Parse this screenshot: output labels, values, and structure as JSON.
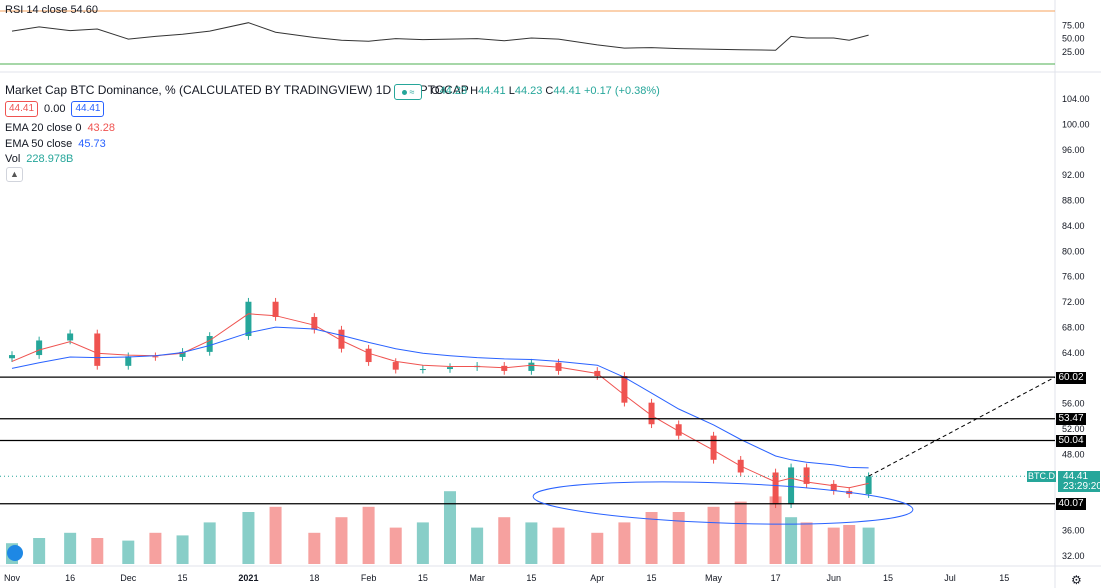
{
  "legend": {
    "title": "Market Cap BTC Dominance, % (CALCULATED BY TRADINGVIEW)",
    "interval": "1D",
    "exchange": "CRYPTOCAP",
    "o_label": "O",
    "o": "44.23",
    "h_label": "H",
    "h": "44.41",
    "l_label": "L",
    "l": "44.23",
    "c_label": "C",
    "c": "44.41",
    "change": "+0.17 (+0.38%)",
    "price_box_1": "44.41",
    "price_box_2": "0.00",
    "price_box_3": "44.41",
    "ema20_label": "EMA 20 close 0",
    "ema20_value": "43.28",
    "ema50_label": "EMA 50 close",
    "ema50_value": "45.73",
    "vol_label": "Vol",
    "vol_value": "228.978B",
    "collapse_icon": "chevron-up-icon",
    "flag_icon": "approx-icon"
  },
  "rsi": {
    "label": "RSI 14 close",
    "value": "54.60",
    "levels": [
      "75.00",
      "50.00",
      "25.00"
    ]
  },
  "price_labels": {
    "current_symbol": "BTC.D",
    "current_price": "44.41",
    "countdown": "23:29:20",
    "horizontal_levels": [
      "60.02",
      "53.47",
      "50.04",
      "40.07"
    ]
  },
  "colors": {
    "up": "#26a69a",
    "down": "#ef5350",
    "ema20": "#ef5350",
    "ema50": "#2962ff",
    "rsi_upper": "#f7a35c",
    "rsi_lower": "#4caf50",
    "level": "#000000"
  },
  "chart_data": [
    {
      "type": "line",
      "title": "RSI 14 close",
      "ylim": [
        0,
        100
      ],
      "ticks": [
        "75.00",
        "50.00",
        "25.00"
      ],
      "bands": [
        70,
        30
      ],
      "x": [
        "2020-11-01",
        "2020-11-08",
        "2020-11-16",
        "2020-11-23",
        "2020-12-01",
        "2020-12-08",
        "2020-12-15",
        "2020-12-22",
        "2021-01-01",
        "2021-01-08",
        "2021-01-18",
        "2021-01-25",
        "2021-02-01",
        "2021-02-08",
        "2021-02-15",
        "2021-02-22",
        "2021-03-01",
        "2021-03-08",
        "2021-03-15",
        "2021-03-22",
        "2021-04-01",
        "2021-04-08",
        "2021-04-15",
        "2021-04-22",
        "2021-05-01",
        "2021-05-08",
        "2021-05-17",
        "2021-05-21",
        "2021-05-25",
        "2021-06-01",
        "2021-06-05",
        "2021-06-10"
      ],
      "values": [
        62,
        70,
        63,
        66,
        47,
        52,
        56,
        62,
        78,
        60,
        50,
        45,
        43,
        48,
        46,
        47,
        48,
        44,
        49,
        47,
        36,
        30,
        31,
        29,
        28,
        27,
        26,
        52,
        49,
        49,
        45,
        54.6
      ]
    },
    {
      "type": "candlestick",
      "title": "Market Cap BTC Dominance, % (CALCULATED BY TRADINGVIEW)",
      "ylim": [
        30,
        106
      ],
      "y_ticks": [
        "104.00",
        "100.00",
        "96.00",
        "92.00",
        "88.00",
        "84.00",
        "80.00",
        "76.00",
        "72.00",
        "68.00",
        "64.00",
        "60.00",
        "56.00",
        "52.00",
        "48.00",
        "44.00",
        "40.00",
        "36.00",
        "32.00"
      ],
      "x_ticks": [
        "Nov",
        "16",
        "Dec",
        "15",
        "2021",
        "18",
        "Feb",
        "15",
        "Mar",
        "15",
        "Apr",
        "15",
        "May",
        "17",
        "Jun",
        "15",
        "Jul",
        "15"
      ],
      "x": [
        "2020-11-01",
        "2020-11-08",
        "2020-11-16",
        "2020-11-23",
        "2020-12-01",
        "2020-12-08",
        "2020-12-15",
        "2020-12-22",
        "2021-01-01",
        "2021-01-08",
        "2021-01-18",
        "2021-01-25",
        "2021-02-01",
        "2021-02-08",
        "2021-02-15",
        "2021-02-22",
        "2021-03-01",
        "2021-03-08",
        "2021-03-15",
        "2021-03-22",
        "2021-04-01",
        "2021-04-08",
        "2021-04-15",
        "2021-04-22",
        "2021-05-01",
        "2021-05-08",
        "2021-05-17",
        "2021-05-21",
        "2021-05-25",
        "2021-06-01",
        "2021-06-05",
        "2021-06-10"
      ],
      "close": [
        63.5,
        65.8,
        66.9,
        61.8,
        63.3,
        63.2,
        64.0,
        66.5,
        71.9,
        69.5,
        67.5,
        64.5,
        62.4,
        61.2,
        61.3,
        61.6,
        61.8,
        61.0,
        62.3,
        61.0,
        60.2,
        56.0,
        52.6,
        50.8,
        47.0,
        45.0,
        40.0,
        45.8,
        43.2,
        42.1,
        41.6,
        44.41
      ],
      "series": [
        {
          "name": "EMA 20 close 0",
          "values": [
            62.5,
            64.3,
            65.6,
            63.8,
            63.5,
            63.4,
            63.8,
            65.8,
            70.0,
            69.7,
            68.2,
            65.8,
            63.8,
            62.5,
            61.9,
            61.7,
            61.7,
            61.5,
            61.9,
            61.6,
            60.6,
            57.2,
            54.0,
            51.5,
            48.5,
            46.0,
            43.5,
            44.1,
            43.5,
            42.9,
            42.6,
            43.28
          ]
        },
        {
          "name": "EMA 50 close",
          "values": [
            61.4,
            62.3,
            63.2,
            63.1,
            63.2,
            63.4,
            63.9,
            65.0,
            67.0,
            67.9,
            67.6,
            66.6,
            65.5,
            64.5,
            63.8,
            63.4,
            63.1,
            62.9,
            62.8,
            62.5,
            61.9,
            60.0,
            57.5,
            55.0,
            52.5,
            50.2,
            47.6,
            47.0,
            46.6,
            46.2,
            45.8,
            45.73
          ]
        }
      ],
      "levels": [
        60.02,
        53.47,
        50.04,
        40.07
      ]
    },
    {
      "type": "bar",
      "title": "Vol",
      "x": [
        "2020-11-01",
        "2020-11-08",
        "2020-11-16",
        "2020-11-23",
        "2020-12-01",
        "2020-12-08",
        "2020-12-15",
        "2020-12-22",
        "2021-01-01",
        "2021-01-08",
        "2021-01-18",
        "2021-01-25",
        "2021-02-01",
        "2021-02-08",
        "2021-02-15",
        "2021-02-22",
        "2021-03-01",
        "2021-03-08",
        "2021-03-15",
        "2021-03-22",
        "2021-04-01",
        "2021-04-08",
        "2021-04-15",
        "2021-04-22",
        "2021-05-01",
        "2021-05-08",
        "2021-05-17",
        "2021-05-21",
        "2021-05-25",
        "2021-06-01",
        "2021-06-05",
        "2021-06-10"
      ],
      "values": [
        0.4,
        0.5,
        0.6,
        0.5,
        0.45,
        0.6,
        0.55,
        0.8,
        1.0,
        1.1,
        0.6,
        0.9,
        1.1,
        0.7,
        0.8,
        1.4,
        0.7,
        0.9,
        0.8,
        0.7,
        0.6,
        0.8,
        1.0,
        1.0,
        1.1,
        1.2,
        1.3,
        0.9,
        0.8,
        0.7,
        0.75,
        0.7
      ]
    }
  ]
}
